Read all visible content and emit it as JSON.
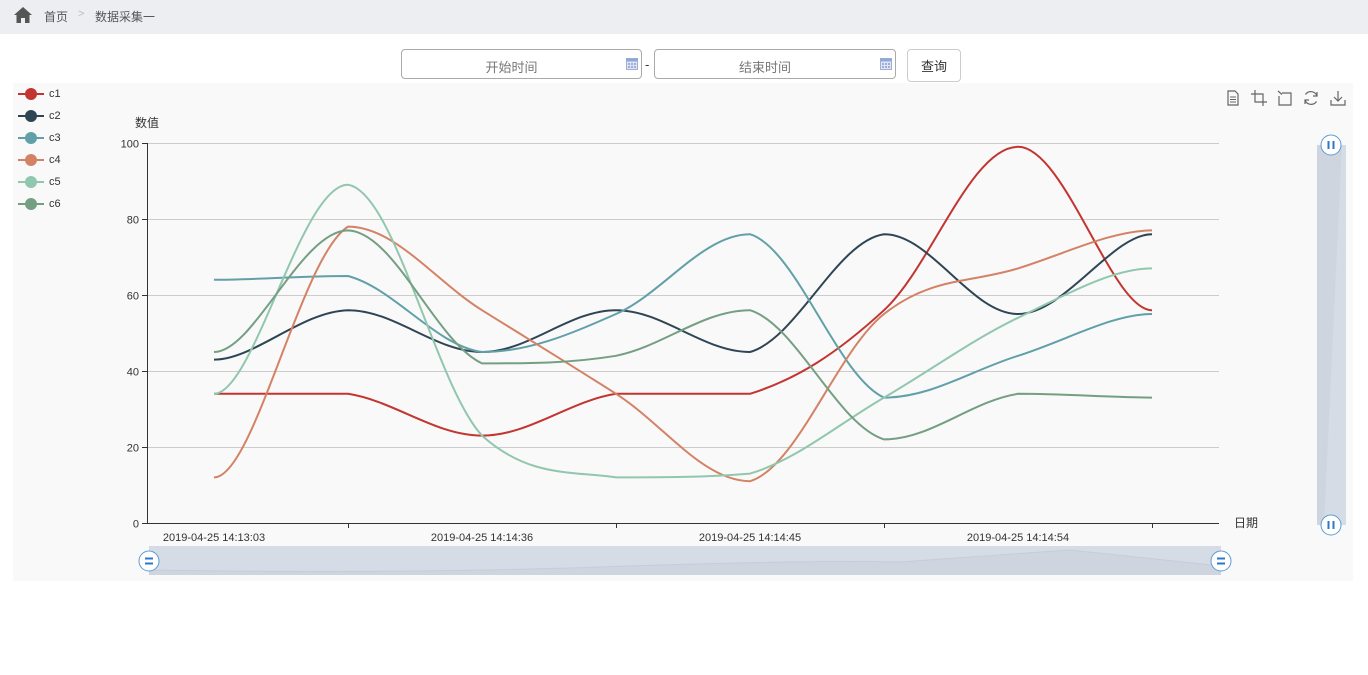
{
  "breadcrumb": {
    "home_icon": "home-icon",
    "items": [
      "首页",
      "数据采集一"
    ],
    "separator": ">"
  },
  "filter": {
    "start_placeholder": "开始时间",
    "end_placeholder": "结束时间",
    "separator": "-",
    "query_label": "查询",
    "calendar_icon": "calendar-icon"
  },
  "toolbox": {
    "icons": [
      "data-view-icon",
      "zoom-icon",
      "zoom-reset-icon",
      "restore-icon",
      "save-image-icon"
    ]
  },
  "colors": {
    "c1": "#c23531",
    "c2": "#2f4554",
    "c3": "#61a0a8",
    "c4": "#d48265",
    "c5": "#91c7ae",
    "c6": "#749f83"
  },
  "chart_data": {
    "type": "line",
    "title": "",
    "xlabel": "日期",
    "ylabel": "数值",
    "ylim": [
      0,
      100
    ],
    "yticks": [
      0,
      20,
      40,
      60,
      80,
      100
    ],
    "grid": true,
    "smooth": true,
    "legend_position": "left-top",
    "x_tick_labels": [
      "2019-04-25 14:13:03",
      "2019-04-25 14:14:36",
      "2019-04-25 14:14:45",
      "2019-04-25 14:14:54"
    ],
    "x_point_count": 8,
    "series": [
      {
        "name": "c1",
        "color": "#c23531",
        "values": [
          34,
          34,
          23,
          34,
          34,
          56,
          99,
          56
        ]
      },
      {
        "name": "c2",
        "color": "#2f4554",
        "values": [
          43,
          56,
          45,
          56,
          45,
          76,
          55,
          76
        ]
      },
      {
        "name": "c3",
        "color": "#61a0a8",
        "values": [
          64,
          65,
          45,
          55,
          76,
          33,
          44,
          55
        ]
      },
      {
        "name": "c4",
        "color": "#d48265",
        "values": [
          12,
          78,
          56,
          34,
          11,
          55,
          67,
          77
        ]
      },
      {
        "name": "c5",
        "color": "#91c7ae",
        "values": [
          34,
          89,
          23,
          12,
          13,
          33,
          54,
          67
        ]
      },
      {
        "name": "c6",
        "color": "#749f83",
        "values": [
          45,
          77,
          42,
          44,
          56,
          22,
          34,
          33
        ]
      }
    ],
    "datazoom": {
      "x": {
        "start": 0,
        "end": 100
      },
      "y": {
        "start": 0,
        "end": 100
      }
    }
  }
}
